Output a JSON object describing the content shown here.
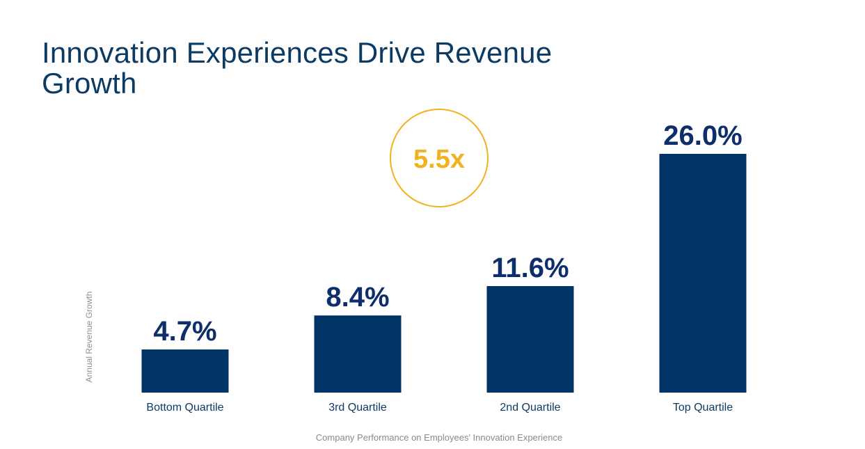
{
  "title": "Innovation Experiences Drive Revenue Growth",
  "colors": {
    "bar": "#003466",
    "value_label": "#0d2d6b",
    "title": "#0b3a63",
    "accent": "#f2b21f",
    "axis_text": "#8f8f8f"
  },
  "callout": {
    "multiplier": "5.5x"
  },
  "chart_data": {
    "type": "bar",
    "title": "Innovation Experiences Drive Revenue Growth",
    "xlabel": "Company Performance on Employees' Innovation Experience",
    "ylabel": "Annual Revenue Growth",
    "categories": [
      "Bottom Quartile",
      "3rd Quartile",
      "2nd Quartile",
      "Top Quartile"
    ],
    "values": [
      4.7,
      8.4,
      11.6,
      26.0
    ],
    "value_labels": [
      "4.7%",
      "8.4%",
      "11.6%",
      "26.0%"
    ],
    "unit": "%",
    "ylim": [
      0,
      26.0
    ],
    "grid": false,
    "legend": "none"
  }
}
